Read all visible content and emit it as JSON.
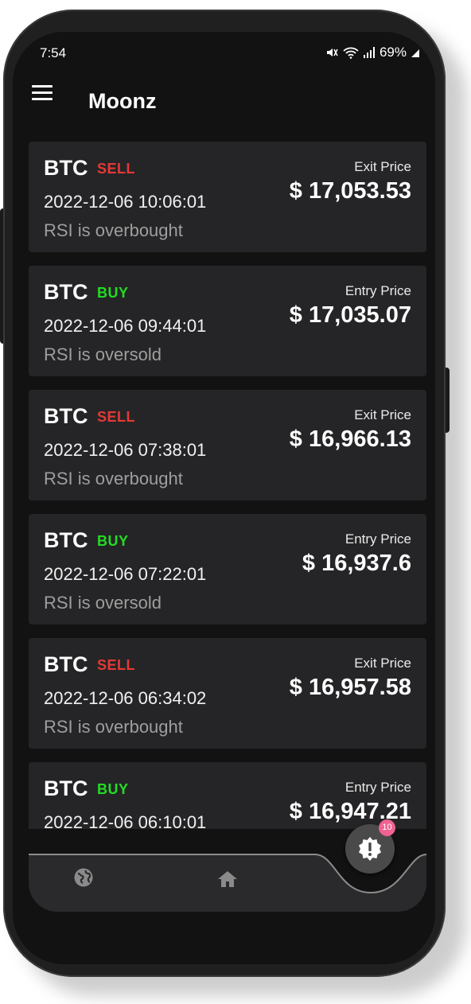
{
  "status_bar": {
    "time": "7:54",
    "battery": "69%"
  },
  "app_bar": {
    "title": "Moonz"
  },
  "signals": [
    {
      "coin": "BTC",
      "signal": "SELL",
      "type": "sell",
      "timestamp": "2022-12-06 10:06:01",
      "reason": "RSI is overbought",
      "price_label": "Exit Price",
      "price": "$ 17,053.53"
    },
    {
      "coin": "BTC",
      "signal": "BUY",
      "type": "buy",
      "timestamp": "2022-12-06 09:44:01",
      "reason": "RSI is oversold",
      "price_label": "Entry Price",
      "price": "$ 17,035.07"
    },
    {
      "coin": "BTC",
      "signal": "SELL",
      "type": "sell",
      "timestamp": "2022-12-06 07:38:01",
      "reason": "RSI is overbought",
      "price_label": "Exit Price",
      "price": "$ 16,966.13"
    },
    {
      "coin": "BTC",
      "signal": "BUY",
      "type": "buy",
      "timestamp": "2022-12-06 07:22:01",
      "reason": "RSI is oversold",
      "price_label": "Entry Price",
      "price": "$ 16,937.6"
    },
    {
      "coin": "BTC",
      "signal": "SELL",
      "type": "sell",
      "timestamp": "2022-12-06 06:34:02",
      "reason": "RSI is overbought",
      "price_label": "Exit Price",
      "price": "$ 16,957.58"
    },
    {
      "coin": "BTC",
      "signal": "BUY",
      "type": "buy",
      "timestamp": "2022-12-06 06:10:01",
      "reason": "",
      "price_label": "Entry Price",
      "price": "$ 16,947.21"
    }
  ],
  "bottom_nav": {
    "items": [
      {
        "icon": "globe-icon"
      },
      {
        "icon": "home-icon"
      }
    ],
    "fab": {
      "icon": "alert-icon",
      "badge": "10"
    }
  },
  "colors": {
    "sell": "#e53935",
    "buy": "#22dd22",
    "badge": "#f06292",
    "card": "#252527",
    "background": "#121212"
  }
}
